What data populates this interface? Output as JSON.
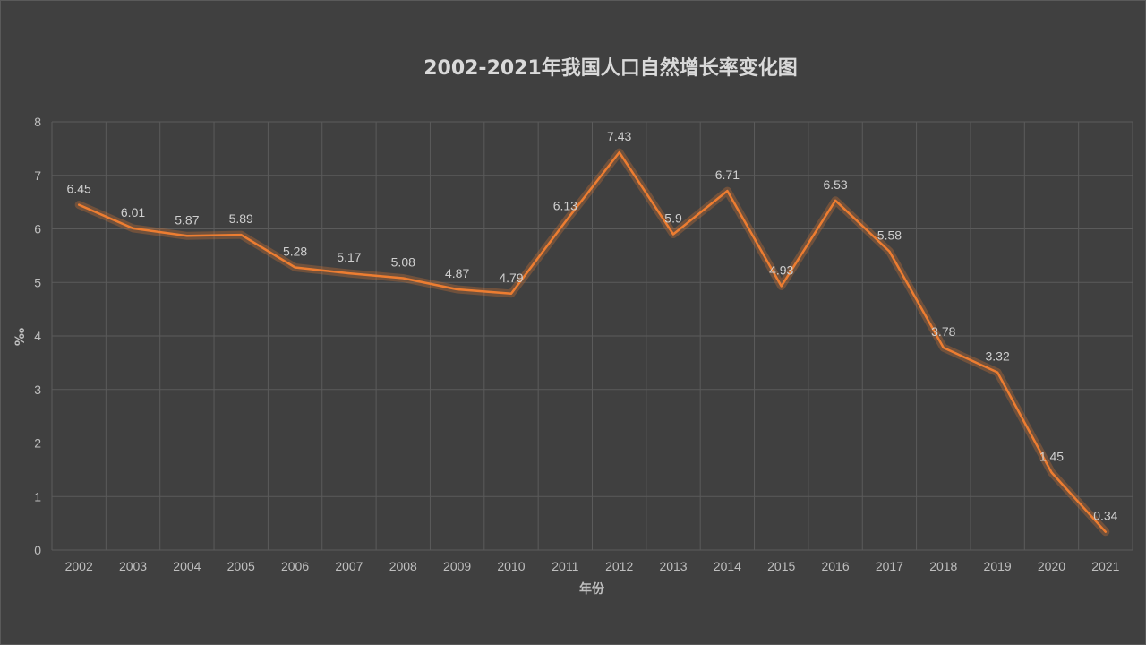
{
  "chart_data": {
    "type": "line",
    "title": "2002-2021年我国人口自然增长率变化图",
    "xlabel": "年份",
    "ylabel": "‰",
    "categories": [
      "2002",
      "2003",
      "2004",
      "2005",
      "2006",
      "2007",
      "2008",
      "2009",
      "2010",
      "2011",
      "2012",
      "2013",
      "2014",
      "2015",
      "2016",
      "2017",
      "2018",
      "2019",
      "2020",
      "2021"
    ],
    "series": [
      {
        "values": [
          6.45,
          6.01,
          5.87,
          5.89,
          5.28,
          5.17,
          5.08,
          4.87,
          4.79,
          6.13,
          7.43,
          5.9,
          6.71,
          4.93,
          6.53,
          5.58,
          3.78,
          3.32,
          1.45,
          0.34
        ],
        "labels": [
          "6.45",
          "6.01",
          "5.87",
          "5.89",
          "5.28",
          "5.17",
          "5.08",
          "4.87",
          "4.79",
          "6.13",
          "7.43",
          "5.9",
          "6.71",
          "4.93",
          "6.53",
          "5.58",
          "3.78",
          "3.32",
          "1.45",
          "0.34"
        ]
      }
    ],
    "ylim": [
      0,
      8
    ],
    "yticks": [
      "0",
      "1",
      "2",
      "3",
      "4",
      "5",
      "6",
      "7",
      "8"
    ],
    "grid": true,
    "legend": "none",
    "colors": {
      "background": "#404040",
      "line": "#ed7d31",
      "grid": "#5b5b5b",
      "text": "#bfbfbf"
    }
  }
}
